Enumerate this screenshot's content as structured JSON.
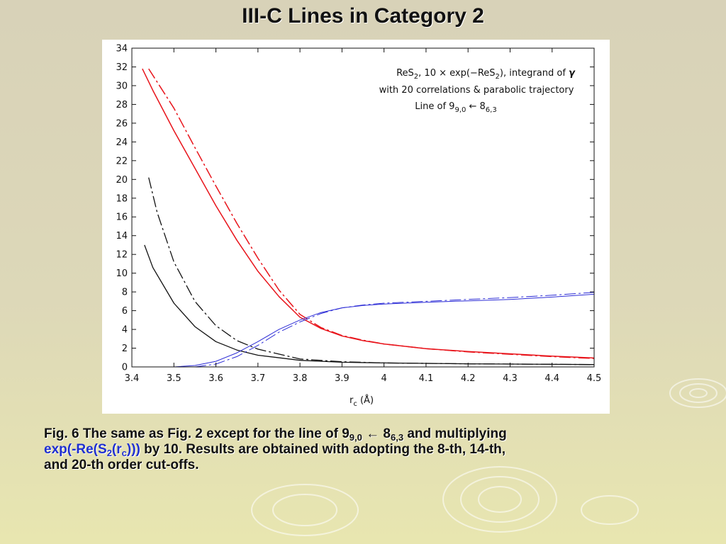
{
  "slide": {
    "title": "III-C Lines in Category 2",
    "caption": {
      "p1": "Fig. 6 The same as Fig. 2 except for the line of 9",
      "sub1": "9,0",
      "p2": " ← 8",
      "sub2": "6,3",
      "p3": " and multiplying",
      "blue1": "exp(-Re(S",
      "blue_sub1": "2",
      "blue2": "(r",
      "blue_sub2": "c",
      "blue3": ")))",
      "p4": " by 10. Results are obtained with adopting the 8-th, 14-th,",
      "p5": "and 20-th order cut-offs."
    }
  },
  "chart_data": {
    "type": "line",
    "legend_lines": [
      {
        "a": "ReS",
        "a_sub": "2",
        "b": ", 10 × exp(−ReS",
        "b_sub": "2",
        "c": "), integrand of ",
        "d": "γ"
      },
      {
        "a": "with 20 correlations & parabolic trajectory"
      },
      {
        "a": "Line of 9",
        "a_sub": "9,0",
        "b": " ← 8",
        "b_sub": "6,3"
      }
    ],
    "legend_placement": "top-right",
    "xlabel": "r",
    "xlabel_sub": "c",
    "xlabel_unit": " (Å)",
    "xlim": [
      3.4,
      4.5
    ],
    "ylim": [
      0,
      34
    ],
    "xticks": [
      "3.4",
      "3.5",
      "3.6",
      "3.7",
      "3.8",
      "3.9",
      "4",
      "4.1",
      "4.2",
      "4.3",
      "4.4",
      "4.5"
    ],
    "yticks": [
      "0",
      "2",
      "4",
      "6",
      "8",
      "10",
      "12",
      "14",
      "16",
      "18",
      "20",
      "22",
      "24",
      "26",
      "28",
      "30",
      "32",
      "34"
    ],
    "grid": false,
    "colors": {
      "red": "#e8141b",
      "black": "#111111",
      "blue": "#2b2bd6"
    },
    "series": [
      {
        "color": "red",
        "dash": "solid",
        "width": 1.5,
        "x": [
          3.425,
          3.45,
          3.5,
          3.55,
          3.6,
          3.65,
          3.7,
          3.75,
          3.8,
          3.85,
          3.9,
          3.95,
          4.0,
          4.1,
          4.2,
          4.3,
          4.4,
          4.5
        ],
        "y": [
          31.8,
          29.5,
          25.2,
          21.2,
          17.2,
          13.5,
          10.2,
          7.5,
          5.3,
          4.1,
          3.3,
          2.8,
          2.45,
          1.95,
          1.65,
          1.4,
          1.15,
          0.95
        ]
      },
      {
        "color": "red",
        "dash": "dashdot",
        "width": 1.5,
        "x": [
          3.44,
          3.5,
          3.55,
          3.6,
          3.65,
          3.7,
          3.75,
          3.8,
          3.85,
          3.9,
          3.95,
          4.0,
          4.1,
          4.2,
          4.3,
          4.4,
          4.5
        ],
        "y": [
          31.8,
          27.6,
          23.4,
          19.3,
          15.3,
          11.6,
          8.2,
          5.6,
          4.2,
          3.35,
          2.85,
          2.45,
          1.95,
          1.6,
          1.35,
          1.1,
          0.9
        ]
      },
      {
        "color": "black",
        "dash": "solid",
        "width": 1.3,
        "x": [
          3.43,
          3.45,
          3.5,
          3.55,
          3.6,
          3.65,
          3.7,
          3.8,
          3.9,
          4.0,
          4.2,
          4.5
        ],
        "y": [
          13.0,
          10.6,
          6.8,
          4.3,
          2.7,
          1.8,
          1.25,
          0.7,
          0.5,
          0.42,
          0.33,
          0.25
        ]
      },
      {
        "color": "black",
        "dash": "dashdot",
        "width": 1.3,
        "x": [
          3.44,
          3.46,
          3.5,
          3.55,
          3.6,
          3.65,
          3.7,
          3.8,
          3.9,
          4.0,
          4.2,
          4.5
        ],
        "y": [
          20.2,
          16.5,
          11.2,
          7.0,
          4.4,
          2.8,
          1.9,
          0.85,
          0.55,
          0.42,
          0.33,
          0.25
        ]
      },
      {
        "color": "blue",
        "dash": "solid",
        "width": 1,
        "x": [
          3.5,
          3.55,
          3.6,
          3.65,
          3.7,
          3.75,
          3.8,
          3.85,
          3.9,
          3.95,
          4.0,
          4.1,
          4.2,
          4.3,
          4.4,
          4.5
        ],
        "y": [
          0.0,
          0.15,
          0.6,
          1.5,
          2.7,
          4.0,
          5.0,
          5.8,
          6.3,
          6.55,
          6.7,
          6.9,
          7.05,
          7.2,
          7.45,
          7.75
        ]
      },
      {
        "color": "blue",
        "dash": "dashdot",
        "width": 1,
        "x": [
          3.55,
          3.6,
          3.65,
          3.7,
          3.75,
          3.8,
          3.85,
          3.9,
          3.95,
          4.0,
          4.1,
          4.2,
          4.3,
          4.4,
          4.5
        ],
        "y": [
          0.0,
          0.3,
          1.1,
          2.3,
          3.7,
          4.8,
          5.7,
          6.3,
          6.6,
          6.8,
          7.0,
          7.2,
          7.4,
          7.65,
          7.95
        ]
      }
    ]
  }
}
